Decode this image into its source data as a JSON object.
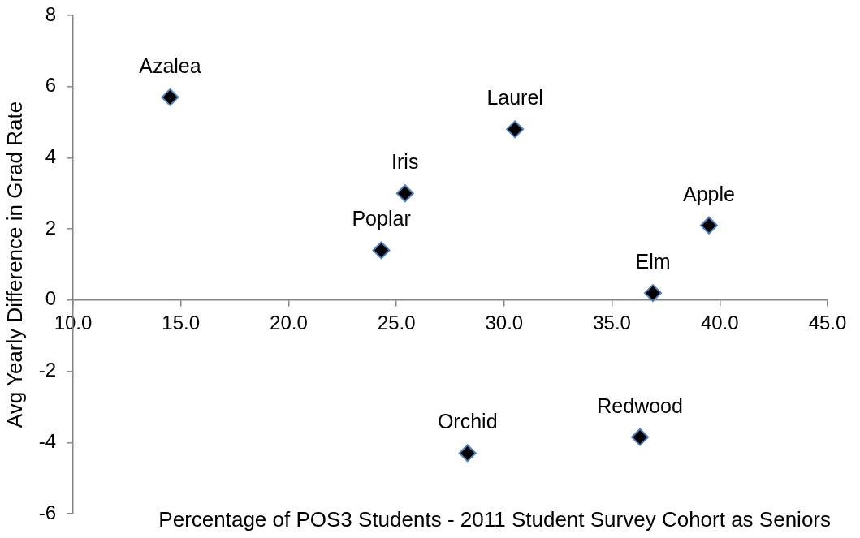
{
  "chart_data": {
    "type": "scatter",
    "xlabel": "Percentage of POS3 Students - 2011 Student Survey Cohort as Seniors",
    "ylabel": "Avg Yearly Difference in Grad Rate",
    "x": [
      14.5,
      24.3,
      25.4,
      28.3,
      30.5,
      36.3,
      36.9,
      39.5
    ],
    "series": [
      {
        "color": "#000000",
        "values": [
          5.7,
          1.4,
          3.0,
          -4.3,
          4.8,
          -3.85,
          0.2,
          2.1
        ]
      }
    ],
    "xlim": [
      10,
      45
    ],
    "xticks": [
      {
        "value": 10,
        "label": "10.0"
      },
      {
        "value": 15,
        "label": "15.0"
      },
      {
        "value": 20,
        "label": "20.0"
      },
      {
        "value": 25,
        "label": "25.0"
      },
      {
        "value": 30,
        "label": "30.0"
      },
      {
        "value": 35,
        "label": "35.0"
      },
      {
        "value": 40,
        "label": "40.0"
      },
      {
        "value": 45,
        "label": "45.0"
      }
    ],
    "ylim": [
      -6,
      8
    ],
    "yticks": [
      -6,
      -4,
      -2,
      0,
      2,
      4,
      6,
      8
    ],
    "marker": "diamond",
    "annotations": [
      {
        "text": "Azalea",
        "x": 14.5,
        "y": 5.7
      },
      {
        "text": "Poplar",
        "x": 24.3,
        "y": 1.4
      },
      {
        "text": "Iris",
        "x": 25.4,
        "y": 3.0
      },
      {
        "text": "Orchid",
        "x": 28.3,
        "y": -4.3
      },
      {
        "text": "Laurel",
        "x": 30.5,
        "y": 4.8
      },
      {
        "text": "Redwood",
        "x": 36.3,
        "y": -3.85
      },
      {
        "text": "Elm",
        "x": 36.9,
        "y": 0.2
      },
      {
        "text": "Apple",
        "x": 39.5,
        "y": 2.1
      }
    ]
  }
}
